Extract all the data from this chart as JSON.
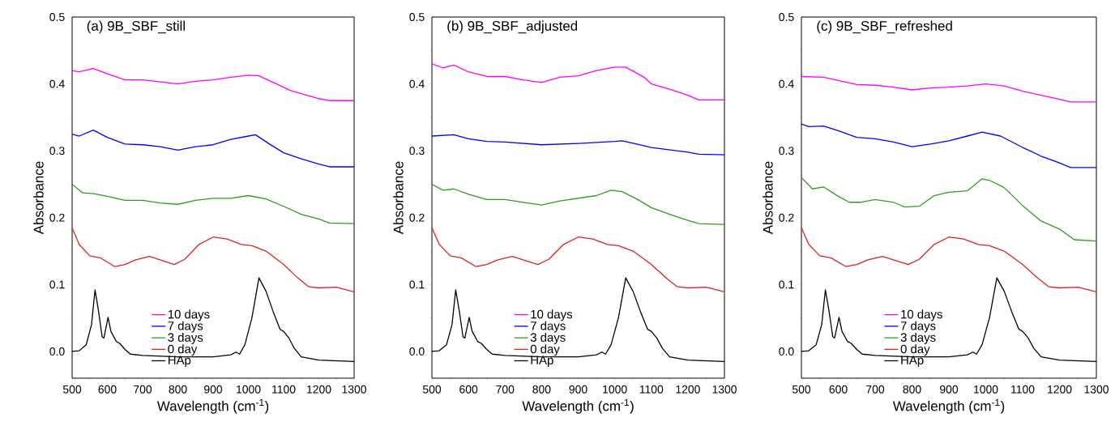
{
  "chart_data": [
    {
      "type": "line",
      "title": "(a)  9B_SBF_still",
      "xlabel": "Wavelength (cm$^{-1}$)",
      "ylabel": "Absorbance",
      "xlim": [
        500,
        1300
      ],
      "ylim": [
        -0.04,
        0.5
      ],
      "xticks": [
        500,
        600,
        700,
        800,
        900,
        1000,
        1100,
        1200,
        1300
      ],
      "yticks": [
        {
          "value": 0,
          "label": "0.0"
        },
        {
          "value": 0.1,
          "label": "0.1"
        },
        {
          "value": 0.2,
          "label": "0.2"
        },
        {
          "value": 0.3,
          "label": "0.3"
        },
        {
          "value": 0.4,
          "label": "0.4"
        },
        {
          "value": 0.5,
          "label": "0.5"
        }
      ],
      "legend": "bottom",
      "series": [
        {
          "name": "10 days",
          "color": "#ff00ff",
          "x": [
            500,
            520,
            560,
            600,
            650,
            700,
            750,
            800,
            850,
            900,
            950,
            1000,
            1030,
            1080,
            1120,
            1200,
            1230,
            1300
          ],
          "values": [
            0.42,
            0.418,
            0.423,
            0.415,
            0.406,
            0.406,
            0.403,
            0.4,
            0.404,
            0.406,
            0.41,
            0.413,
            0.412,
            0.4,
            0.39,
            0.378,
            0.375,
            0.375
          ]
        },
        {
          "name": "7 days",
          "color": "#0000ff",
          "x": [
            500,
            520,
            560,
            600,
            650,
            700,
            750,
            800,
            850,
            900,
            950,
            1000,
            1020,
            1060,
            1100,
            1150,
            1200,
            1230,
            1300
          ],
          "values": [
            0.325,
            0.322,
            0.331,
            0.32,
            0.31,
            0.309,
            0.306,
            0.301,
            0.306,
            0.309,
            0.317,
            0.322,
            0.324,
            0.31,
            0.297,
            0.288,
            0.28,
            0.276,
            0.276
          ]
        },
        {
          "name": "3 days",
          "color": "#339922",
          "x": [
            500,
            530,
            560,
            600,
            650,
            700,
            750,
            800,
            850,
            900,
            950,
            1000,
            1050,
            1100,
            1150,
            1200,
            1230,
            1300
          ],
          "values": [
            0.25,
            0.237,
            0.236,
            0.232,
            0.226,
            0.226,
            0.222,
            0.22,
            0.226,
            0.229,
            0.229,
            0.233,
            0.228,
            0.217,
            0.205,
            0.198,
            0.192,
            0.191
          ]
        },
        {
          "name": "0 day",
          "color": "#dd2222",
          "x": [
            500,
            520,
            550,
            580,
            620,
            650,
            680,
            720,
            760,
            790,
            820,
            860,
            900,
            940,
            980,
            1010,
            1050,
            1100,
            1140,
            1170,
            1200,
            1250,
            1300
          ],
          "values": [
            0.185,
            0.16,
            0.143,
            0.14,
            0.127,
            0.13,
            0.137,
            0.142,
            0.135,
            0.13,
            0.138,
            0.16,
            0.171,
            0.168,
            0.16,
            0.158,
            0.15,
            0.13,
            0.11,
            0.097,
            0.095,
            0.096,
            0.089
          ]
        },
        {
          "name": "HAp",
          "color": "#000000",
          "x": [
            500,
            520,
            540,
            555,
            565,
            575,
            585,
            590,
            602,
            610,
            625,
            635,
            650,
            665,
            700,
            800,
            900,
            950,
            965,
            975,
            990,
            1010,
            1030,
            1050,
            1070,
            1090,
            1100,
            1115,
            1130,
            1150,
            1200,
            1300
          ],
          "values": [
            0.0,
            0.001,
            0.01,
            0.04,
            0.092,
            0.06,
            0.022,
            0.02,
            0.051,
            0.03,
            0.015,
            0.012,
            0.003,
            -0.004,
            -0.006,
            -0.008,
            -0.008,
            -0.005,
            -0.001,
            -0.004,
            0.01,
            0.05,
            0.11,
            0.09,
            0.06,
            0.033,
            0.03,
            0.02,
            0.005,
            -0.008,
            -0.013,
            -0.015
          ]
        }
      ]
    },
    {
      "type": "line",
      "title": "(b) 9B_SBF_adjusted",
      "xlabel": "Wavelength (cm$^{-1}$)",
      "ylabel": "Absorbance",
      "xlim": [
        500,
        1300
      ],
      "ylim": [
        -0.04,
        0.5
      ],
      "xticks": [
        500,
        600,
        700,
        800,
        900,
        1000,
        1100,
        1200,
        1300
      ],
      "yticks": [
        {
          "value": 0,
          "label": "0.0"
        },
        {
          "value": 0.1,
          "label": "0.1"
        },
        {
          "value": 0.2,
          "label": "0.2"
        },
        {
          "value": 0.3,
          "label": "0.3"
        },
        {
          "value": 0.4,
          "label": "0.4"
        },
        {
          "value": 0.5,
          "label": "0.5"
        }
      ],
      "legend": "bottom",
      "series": [
        {
          "name": "10 days",
          "color": "#ff00ff",
          "x": [
            500,
            530,
            560,
            600,
            650,
            700,
            750,
            800,
            850,
            900,
            950,
            1000,
            1030,
            1080,
            1100,
            1150,
            1200,
            1230,
            1300
          ],
          "values": [
            0.43,
            0.424,
            0.428,
            0.418,
            0.411,
            0.411,
            0.406,
            0.402,
            0.41,
            0.412,
            0.42,
            0.425,
            0.425,
            0.41,
            0.4,
            0.392,
            0.383,
            0.376,
            0.376
          ]
        },
        {
          "name": "7 days",
          "color": "#0000ff",
          "x": [
            500,
            560,
            600,
            650,
            700,
            800,
            900,
            1000,
            1020,
            1060,
            1100,
            1200,
            1230,
            1300
          ],
          "values": [
            0.322,
            0.324,
            0.318,
            0.314,
            0.313,
            0.309,
            0.311,
            0.314,
            0.315,
            0.31,
            0.305,
            0.298,
            0.295,
            0.294
          ]
        },
        {
          "name": "3 days",
          "color": "#339922",
          "x": [
            500,
            530,
            560,
            600,
            650,
            700,
            750,
            800,
            850,
            900,
            950,
            990,
            1020,
            1060,
            1100,
            1150,
            1200,
            1230,
            1300
          ],
          "values": [
            0.25,
            0.241,
            0.243,
            0.235,
            0.227,
            0.227,
            0.223,
            0.219,
            0.225,
            0.229,
            0.233,
            0.241,
            0.239,
            0.228,
            0.215,
            0.205,
            0.196,
            0.191,
            0.19
          ]
        },
        {
          "name": "0 day",
          "color": "#dd2222",
          "x": [
            500,
            520,
            550,
            580,
            620,
            650,
            680,
            720,
            760,
            790,
            820,
            860,
            900,
            940,
            980,
            1010,
            1050,
            1100,
            1140,
            1170,
            1200,
            1250,
            1300
          ],
          "values": [
            0.185,
            0.16,
            0.143,
            0.14,
            0.127,
            0.13,
            0.137,
            0.142,
            0.135,
            0.13,
            0.138,
            0.16,
            0.171,
            0.168,
            0.16,
            0.158,
            0.15,
            0.13,
            0.11,
            0.097,
            0.095,
            0.096,
            0.089
          ]
        },
        {
          "name": "HAp",
          "color": "#000000",
          "x": [
            500,
            520,
            540,
            555,
            565,
            575,
            585,
            590,
            602,
            610,
            625,
            635,
            650,
            665,
            700,
            800,
            900,
            950,
            965,
            975,
            990,
            1010,
            1030,
            1050,
            1070,
            1090,
            1100,
            1115,
            1130,
            1150,
            1200,
            1300
          ],
          "values": [
            0.0,
            0.001,
            0.01,
            0.04,
            0.092,
            0.06,
            0.022,
            0.02,
            0.051,
            0.03,
            0.015,
            0.012,
            0.003,
            -0.004,
            -0.006,
            -0.008,
            -0.008,
            -0.005,
            -0.001,
            -0.004,
            0.01,
            0.05,
            0.11,
            0.09,
            0.06,
            0.033,
            0.03,
            0.02,
            0.005,
            -0.008,
            -0.013,
            -0.015
          ]
        }
      ]
    },
    {
      "type": "line",
      "title": "(c)  9B_SBF_refreshed",
      "xlabel": "Wavelength (cm$^{-1}$)",
      "ylabel": "Absorbance",
      "xlim": [
        500,
        1300
      ],
      "ylim": [
        -0.04,
        0.5
      ],
      "xticks": [
        500,
        600,
        700,
        800,
        900,
        1000,
        1100,
        1200,
        1300
      ],
      "yticks": [
        {
          "value": 0,
          "label": "0.0"
        },
        {
          "value": 0.1,
          "label": "0.1"
        },
        {
          "value": 0.2,
          "label": "0.2"
        },
        {
          "value": 0.3,
          "label": "0.3"
        },
        {
          "value": 0.4,
          "label": "0.4"
        },
        {
          "value": 0.5,
          "label": "0.5"
        }
      ],
      "legend": "bottom",
      "series": [
        {
          "name": "10 days",
          "color": "#ff00ff",
          "x": [
            500,
            560,
            600,
            650,
            700,
            750,
            800,
            850,
            900,
            950,
            1000,
            1050,
            1100,
            1150,
            1200,
            1230,
            1300
          ],
          "values": [
            0.411,
            0.41,
            0.405,
            0.399,
            0.398,
            0.395,
            0.391,
            0.394,
            0.395,
            0.397,
            0.4,
            0.397,
            0.389,
            0.383,
            0.377,
            0.373,
            0.373
          ]
        },
        {
          "name": "7 days",
          "color": "#0000ff",
          "x": [
            500,
            520,
            560,
            600,
            650,
            700,
            750,
            800,
            850,
            900,
            950,
            990,
            1040,
            1100,
            1150,
            1200,
            1230,
            1300
          ],
          "values": [
            0.34,
            0.336,
            0.337,
            0.33,
            0.32,
            0.318,
            0.313,
            0.306,
            0.31,
            0.315,
            0.322,
            0.328,
            0.322,
            0.305,
            0.292,
            0.282,
            0.275,
            0.275
          ]
        },
        {
          "name": "3 days",
          "color": "#339922",
          "x": [
            500,
            530,
            560,
            600,
            630,
            660,
            700,
            750,
            780,
            820,
            860,
            900,
            950,
            990,
            1010,
            1050,
            1100,
            1150,
            1200,
            1240,
            1300
          ],
          "values": [
            0.26,
            0.243,
            0.246,
            0.232,
            0.223,
            0.223,
            0.227,
            0.223,
            0.216,
            0.217,
            0.233,
            0.238,
            0.24,
            0.258,
            0.256,
            0.245,
            0.218,
            0.195,
            0.183,
            0.167,
            0.165
          ]
        },
        {
          "name": "0 day",
          "color": "#dd2222",
          "x": [
            500,
            520,
            550,
            580,
            620,
            650,
            680,
            720,
            760,
            790,
            820,
            860,
            900,
            940,
            980,
            1010,
            1050,
            1100,
            1140,
            1170,
            1200,
            1250,
            1300
          ],
          "values": [
            0.185,
            0.16,
            0.143,
            0.14,
            0.127,
            0.13,
            0.137,
            0.142,
            0.135,
            0.13,
            0.138,
            0.16,
            0.171,
            0.168,
            0.16,
            0.158,
            0.15,
            0.13,
            0.11,
            0.097,
            0.095,
            0.096,
            0.089
          ]
        },
        {
          "name": "HAp",
          "color": "#000000",
          "x": [
            500,
            520,
            540,
            555,
            565,
            575,
            585,
            590,
            602,
            610,
            625,
            635,
            650,
            665,
            700,
            800,
            900,
            950,
            965,
            975,
            990,
            1010,
            1030,
            1050,
            1070,
            1090,
            1100,
            1115,
            1130,
            1150,
            1200,
            1300
          ],
          "values": [
            0.0,
            0.001,
            0.01,
            0.04,
            0.092,
            0.06,
            0.022,
            0.02,
            0.051,
            0.03,
            0.015,
            0.012,
            0.003,
            -0.004,
            -0.006,
            -0.008,
            -0.008,
            -0.005,
            -0.001,
            -0.004,
            0.01,
            0.05,
            0.11,
            0.09,
            0.06,
            0.033,
            0.03,
            0.02,
            0.005,
            -0.008,
            -0.013,
            -0.015
          ]
        }
      ]
    }
  ]
}
